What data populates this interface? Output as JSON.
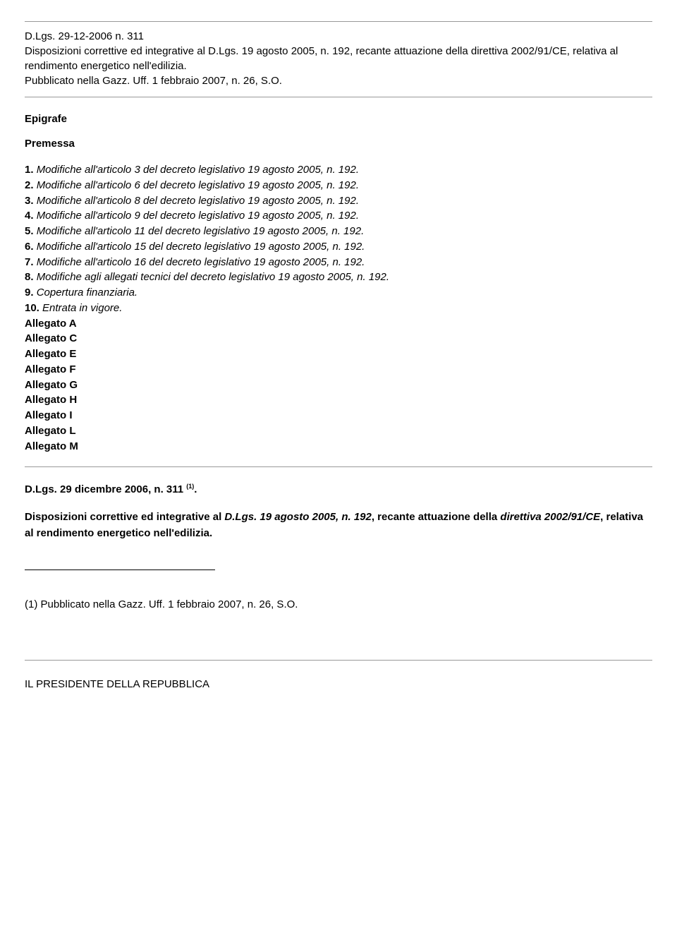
{
  "header": {
    "line1": "D.Lgs. 29-12-2006 n. 311",
    "line2": "Disposizioni correttive ed integrative al D.Lgs. 19 agosto 2005, n. 192, recante attuazione della direttiva 2002/91/CE, relativa al rendimento energetico nell'edilizia.",
    "line3": "Pubblicato nella Gazz. Uff. 1 febbraio 2007, n. 26, S.O."
  },
  "epigrafe_label": "Epigrafe",
  "premessa_label": "Premessa",
  "toc": [
    {
      "num": "1.",
      "text": "Modifiche all'articolo 3 del decreto legislativo 19 agosto 2005, n. 192."
    },
    {
      "num": "2.",
      "text": "Modifiche all'articolo 6 del decreto legislativo 19 agosto 2005, n. 192."
    },
    {
      "num": "3.",
      "text": "Modifiche all'articolo 8 del decreto legislativo 19 agosto 2005, n. 192."
    },
    {
      "num": "4.",
      "text": "Modifiche all'articolo 9 del decreto legislativo 19 agosto 2005, n. 192."
    },
    {
      "num": "5.",
      "text": "Modifiche all'articolo 11 del decreto legislativo 19 agosto 2005, n. 192."
    },
    {
      "num": "6.",
      "text": "Modifiche all'articolo 15 del decreto legislativo 19 agosto 2005, n. 192."
    },
    {
      "num": "7.",
      "text": "Modifiche all'articolo 16 del decreto legislativo 19 agosto 2005, n. 192."
    },
    {
      "num": "8.",
      "text": "Modifiche agli allegati tecnici del decreto legislativo 19 agosto 2005, n. 192."
    },
    {
      "num": "9.",
      "text": "Copertura finanziaria."
    },
    {
      "num": "10.",
      "text": "Entrata in vigore."
    }
  ],
  "allegati": [
    "Allegato A",
    "Allegato C",
    "Allegato E",
    "Allegato F",
    "Allegato G",
    "Allegato H",
    "Allegato I",
    "Allegato L",
    "Allegato M"
  ],
  "doc_ref": {
    "prefix": "D.Lgs. 29 dicembre 2006, n. 311 ",
    "sup": "(1)",
    "suffix": "."
  },
  "disposizioni": {
    "part1_bold": "Disposizioni correttive ed integrative al ",
    "part2_bolditalic": "D.Lgs. 19 agosto 2005, n. 192",
    "part3_bold": ", recante attuazione della ",
    "part4_bolditalic": "direttiva 2002/91/CE",
    "part5_bold": ", relativa al rendimento energetico nell'edilizia."
  },
  "footnote": "(1) Pubblicato nella Gazz. Uff. 1 febbraio 2007, n. 26, S.O.",
  "president": "IL PRESIDENTE DELLA REPUBBLICA"
}
